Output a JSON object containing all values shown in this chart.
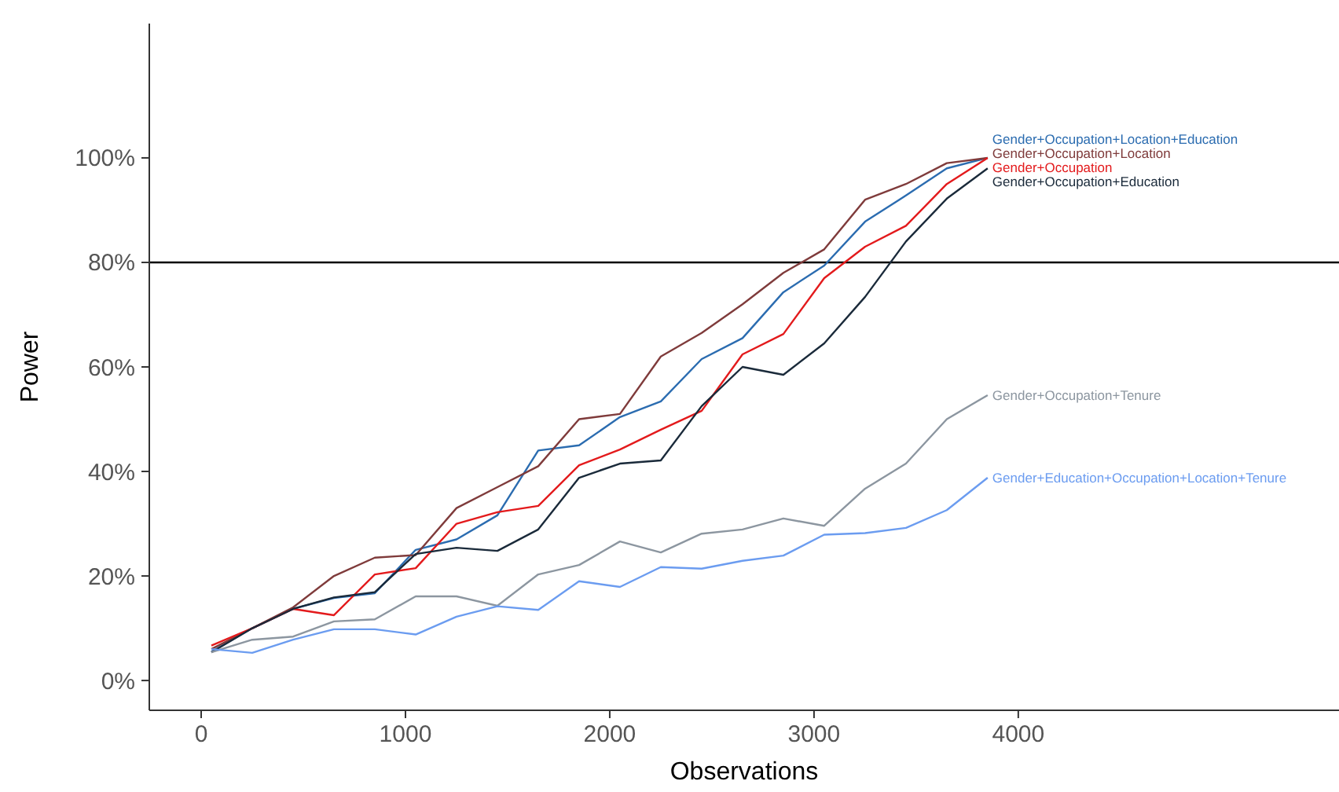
{
  "chart_data": {
    "type": "line",
    "xlabel": "Observations",
    "ylabel": "Power",
    "x": [
      50,
      250,
      450,
      650,
      850,
      1050,
      1250,
      1450,
      1650,
      1850,
      2050,
      2250,
      2450,
      2650,
      2850,
      3050,
      3250,
      3450,
      3650,
      3850
    ],
    "series": [
      {
        "name": "Gender+Occupation+Location+Education",
        "color": "#2b6cb0",
        "values": [
          5.5,
          10,
          13.7,
          15.8,
          16.7,
          25,
          27,
          31.6,
          44,
          45,
          50.4,
          53.4,
          61.5,
          65.5,
          74.3,
          79.4,
          87.8,
          92.8,
          98,
          100
        ]
      },
      {
        "name": "Gender+Occupation+Location",
        "color": "#7f3b3b",
        "values": [
          6,
          10,
          14,
          20,
          23.5,
          24,
          33,
          37,
          41,
          50,
          51,
          62,
          66.5,
          72,
          78,
          82.5,
          92,
          95,
          99,
          100
        ]
      },
      {
        "name": "Gender+Occupation",
        "color": "#e31a1c",
        "values": [
          6.7,
          10,
          13.7,
          12.5,
          20.3,
          21.5,
          30,
          32.2,
          33.4,
          41.2,
          44.2,
          48,
          51.6,
          62.4,
          66.3,
          77,
          83,
          87,
          95,
          100
        ]
      },
      {
        "name": "Gender+Occupation+Education",
        "color": "#1a2a3a",
        "values": [
          5.4,
          10,
          13.7,
          15.9,
          16.9,
          24.2,
          25.4,
          24.8,
          28.9,
          38.8,
          41.5,
          42.1,
          52.5,
          60,
          58.5,
          64.5,
          73.4,
          84,
          92.2,
          98
        ]
      },
      {
        "name": "Gender+Occupation+Tenure",
        "color": "#8c96a0",
        "values": [
          5.4,
          7.8,
          8.4,
          11.3,
          11.7,
          16.1,
          16.1,
          14.3,
          20.3,
          22.1,
          26.6,
          24.5,
          28.1,
          28.9,
          31,
          29.6,
          36.7,
          41.5,
          50,
          54.6
        ]
      },
      {
        "name": "Gender+Education+Occupation+Location+Tenure",
        "color": "#6b9cf0",
        "values": [
          6,
          5.3,
          7.8,
          9.8,
          9.8,
          8.8,
          12.2,
          14.2,
          13.5,
          19,
          17.9,
          21.7,
          21.4,
          22.9,
          23.9,
          27.9,
          28.2,
          29.2,
          32.6,
          38.8
        ]
      }
    ],
    "xlim": [
      -254,
      5570
    ],
    "xticks": [
      0,
      1000,
      2000,
      3000,
      4000
    ],
    "ylim": [
      -5.7,
      125.7
    ],
    "yticks": [
      {
        "value": 0,
        "label": "0%"
      },
      {
        "value": 20,
        "label": "20%"
      },
      {
        "value": 40,
        "label": "40%"
      },
      {
        "value": 60,
        "label": "60%"
      },
      {
        "value": 80,
        "label": "80%"
      },
      {
        "value": 100,
        "label": "100%"
      }
    ],
    "ref_lines": [
      {
        "axis": "y",
        "value": 80,
        "color": "#000000"
      }
    ],
    "grid": false,
    "marker": "none",
    "line_style": "solid"
  }
}
